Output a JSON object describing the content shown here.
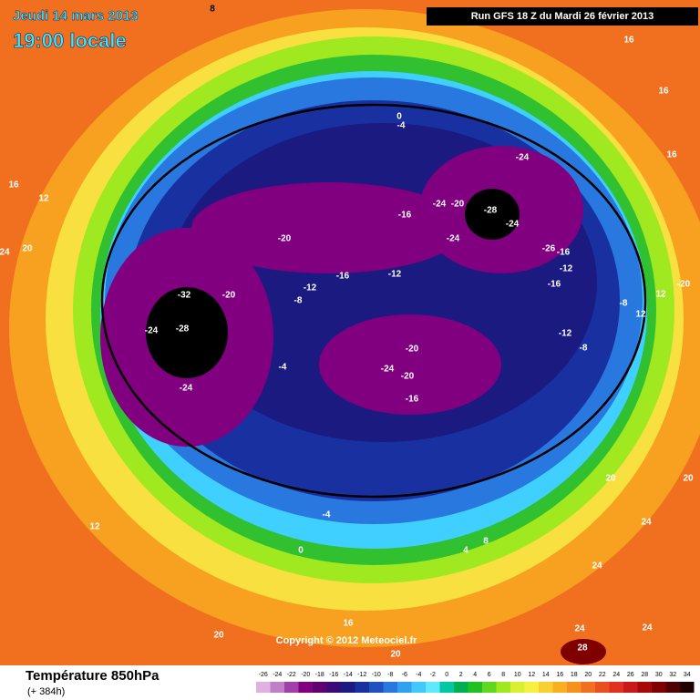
{
  "header": {
    "date": "Jeudi 14 mars 2013",
    "time": "19:00 locale",
    "run": "Run GFS 18 Z du Mardi 26 février 2013"
  },
  "copyright": "Copyright © 2012 Meteociel.fr",
  "footer": {
    "title": "Température 850hPa",
    "lead": "(+ 384h)"
  },
  "map_labels": [
    "8",
    "16",
    "16",
    "16",
    "16",
    "12",
    "20",
    "24",
    "0",
    "-4",
    "-24",
    "-24",
    "-20",
    "-28",
    "-24",
    "-16",
    "-20",
    "-24",
    "-26",
    "-16",
    "-16",
    "-12",
    "-12",
    "-20",
    "-32",
    "-20",
    "-12",
    "-8",
    "-16",
    "12",
    "-8",
    "12",
    "-28",
    "-24",
    "-12",
    "-8",
    "-20",
    "-24",
    "-20",
    "-4",
    "-24",
    "-16",
    "20",
    "20",
    "12",
    "-4",
    "0",
    "4",
    "8",
    "24",
    "24",
    "24",
    "24",
    "28",
    "20",
    "16",
    "20"
  ],
  "scale": {
    "ticks": [
      -26,
      -24,
      -22,
      -20,
      -18,
      -16,
      -14,
      -12,
      -10,
      -8,
      -6,
      -4,
      -2,
      0,
      2,
      4,
      6,
      8,
      10,
      12,
      14,
      16,
      18,
      20,
      22,
      24,
      26,
      28,
      30,
      32,
      34
    ],
    "colors": [
      "#e0b0e0",
      "#c080c8",
      "#a040a8",
      "#800080",
      "#600070",
      "#3a0a78",
      "#1a1a80",
      "#1830a0",
      "#2050c0",
      "#2878e0",
      "#30a0f0",
      "#40c8ff",
      "#60e8ff",
      "#00c8a0",
      "#00b050",
      "#20c020",
      "#60d820",
      "#a0e820",
      "#d8f030",
      "#f8f040",
      "#f8d030",
      "#f8b020",
      "#f89020",
      "#f07020",
      "#e85020",
      "#e03020",
      "#c81818",
      "#a80808",
      "#800000",
      "#500000",
      "#200000"
    ]
  }
}
